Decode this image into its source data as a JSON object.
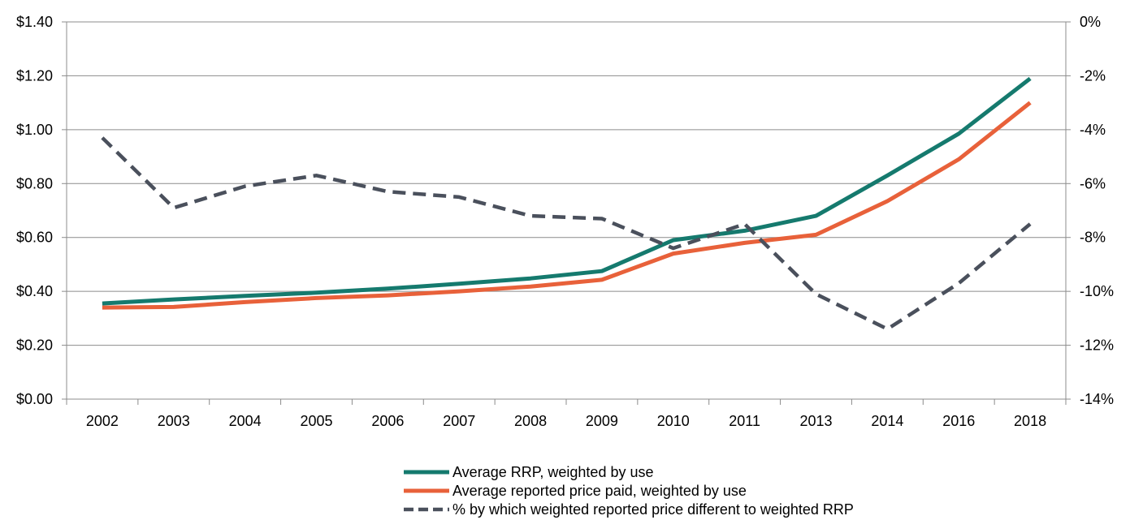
{
  "chart_data": {
    "type": "line",
    "title": "",
    "xlabel": "",
    "ylabel": "",
    "categories": [
      "2002",
      "2003",
      "2004",
      "2005",
      "2006",
      "2007",
      "2008",
      "2009",
      "2010",
      "2011",
      "2013",
      "2014",
      "2016",
      "2018"
    ],
    "y_left": {
      "min": 0,
      "max": 1.4,
      "ticks": [
        0,
        0.2,
        0.4,
        0.6,
        0.8,
        1.0,
        1.2,
        1.4
      ],
      "tick_labels": [
        "$0.00",
        "$0.20",
        "$0.40",
        "$0.60",
        "$0.80",
        "$1.00",
        "$1.20",
        "$1.40"
      ]
    },
    "y_right": {
      "min": -14,
      "max": 0,
      "ticks": [
        -14,
        -12,
        -10,
        -8,
        -6,
        -4,
        -2,
        0
      ],
      "tick_labels": [
        "-14%",
        "-12%",
        "-10%",
        "-8%",
        "-6%",
        "-4%",
        "-2%",
        "0%"
      ]
    },
    "grid": true,
    "legend_position": "bottom",
    "series": [
      {
        "name": "Average RRP, weighted by use",
        "axis": "left",
        "color": "#157A6E",
        "style": "solid",
        "values": [
          0.355,
          0.37,
          0.383,
          0.395,
          0.41,
          0.428,
          0.448,
          0.475,
          0.59,
          0.625,
          0.68,
          0.83,
          0.985,
          1.19
        ]
      },
      {
        "name": "Average reported price paid, weighted by use",
        "axis": "left",
        "color": "#E8613A",
        "style": "solid",
        "values": [
          0.34,
          0.342,
          0.36,
          0.375,
          0.385,
          0.4,
          0.418,
          0.443,
          0.54,
          0.58,
          0.61,
          0.735,
          0.89,
          1.1
        ]
      },
      {
        "name": "% by which weighted reported price different to weighted RRP",
        "axis": "right",
        "color": "#4A505C",
        "style": "dashed",
        "values": [
          -4.3,
          -6.9,
          -6.1,
          -5.7,
          -6.3,
          -6.5,
          -7.2,
          -7.3,
          -8.4,
          -7.5,
          -10.1,
          -11.4,
          -9.7,
          -7.5
        ]
      }
    ]
  }
}
